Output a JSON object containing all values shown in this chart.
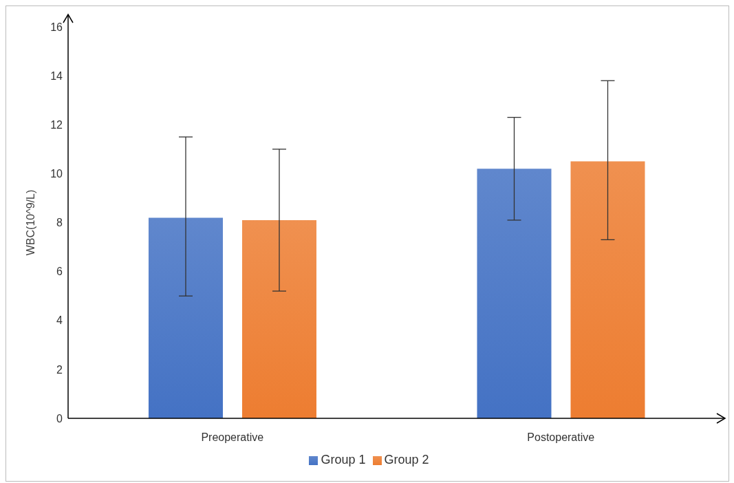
{
  "chart_data": {
    "type": "bar",
    "ylabel": "WBC(10^9/L)",
    "categories": [
      "Preoperative",
      "Postoperative"
    ],
    "series": [
      {
        "name": "Group 1",
        "color": "#4472c4",
        "values": [
          8.2,
          10.2
        ],
        "errors": [
          [
            5.0,
            11.5
          ],
          [
            8.1,
            12.3
          ]
        ]
      },
      {
        "name": "Group 2",
        "color": "#ed7d31",
        "values": [
          8.1,
          10.5
        ],
        "errors": [
          [
            5.2,
            11.0
          ],
          [
            7.3,
            13.8
          ]
        ]
      }
    ],
    "ylim": [
      0,
      16
    ],
    "yticks": [
      0,
      2,
      4,
      6,
      8,
      10,
      12,
      14,
      16
    ],
    "legend": "bottom"
  }
}
